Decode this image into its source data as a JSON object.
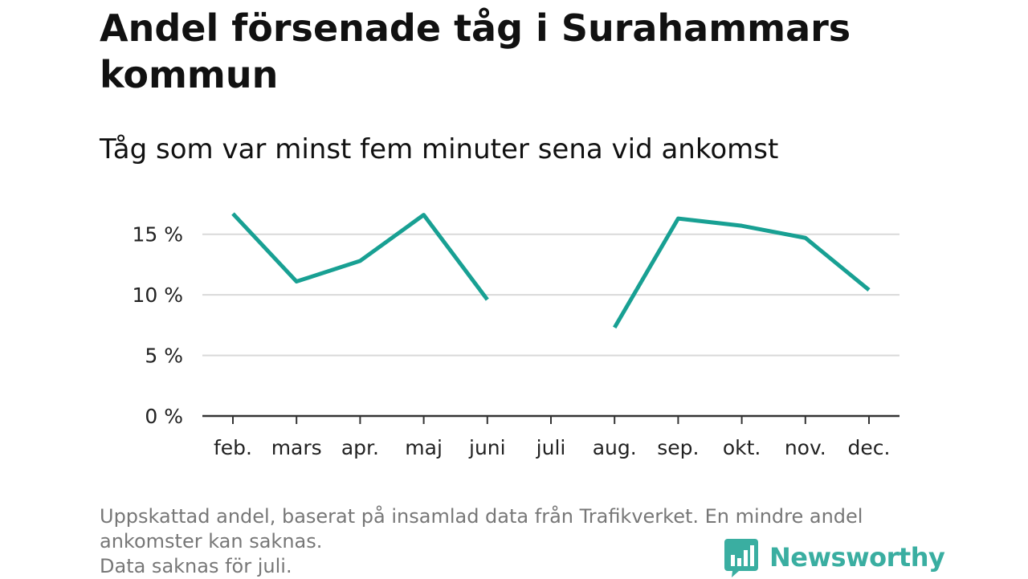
{
  "title": "Andel försenade tåg i Surahammars kommun",
  "subtitle": "Tåg som var minst fem minuter sena vid ankomst",
  "footnote": {
    "line1": "Uppskattad andel, baserat på insamlad data från Trafikverket. En mindre andel ankomster kan saknas.",
    "line2": "Data saknas för juli."
  },
  "brand": {
    "name": "Newsworthy",
    "color": "#3aaea1",
    "icon": "newsworthy-logo-icon"
  },
  "colors": {
    "line": "#18a093",
    "grid": "#d9d9d9",
    "axis": "#333333",
    "text": "#222222"
  },
  "chart_data": {
    "type": "line",
    "categories": [
      "feb.",
      "mars",
      "apr.",
      "maj",
      "juni",
      "juli",
      "aug.",
      "sep.",
      "okt.",
      "nov.",
      "dec."
    ],
    "series": [
      {
        "values": [
          16.7,
          11.1,
          12.8,
          16.6,
          9.6,
          null,
          7.3,
          16.3,
          15.7,
          14.7,
          10.4
        ]
      }
    ],
    "y_ticks": [
      0,
      5,
      10,
      15
    ],
    "y_tick_labels": [
      "0 %",
      "5 %",
      "10 %",
      "15 %"
    ],
    "ylim": [
      0,
      17.5
    ],
    "grid": true,
    "legend": "none",
    "xlabel": "",
    "ylabel": ""
  }
}
